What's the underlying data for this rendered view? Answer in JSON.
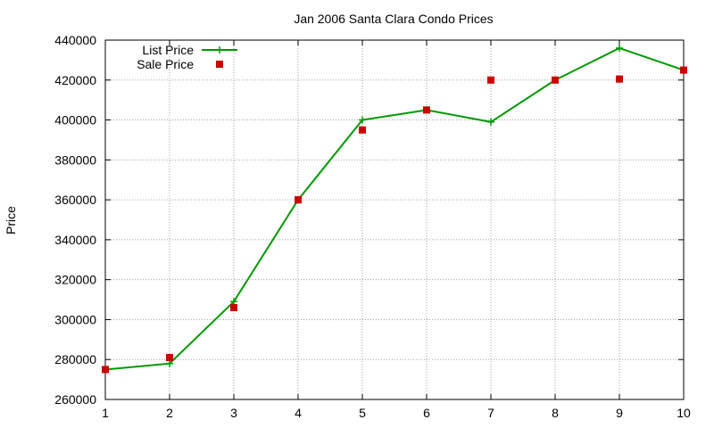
{
  "chart_data": {
    "type": "line",
    "title": "Jan 2006 Santa Clara Condo Prices",
    "xlabel": "",
    "ylabel": "Price",
    "xlim": [
      1,
      10
    ],
    "ylim": [
      260000,
      440000
    ],
    "x_ticks": [
      "1",
      "2",
      "3",
      "4",
      "5",
      "6",
      "7",
      "8",
      "9",
      "10"
    ],
    "y_ticks": [
      "260000",
      "280000",
      "300000",
      "320000",
      "340000",
      "360000",
      "380000",
      "400000",
      "420000",
      "440000"
    ],
    "grid": true,
    "legend_position": "top-left",
    "x": [
      1,
      2,
      3,
      4,
      5,
      6,
      7,
      8,
      9,
      10
    ],
    "series": [
      {
        "name": "List Price",
        "style": "line+cross",
        "color": "#009900",
        "values": [
          275000,
          278000,
          309000,
          360000,
          400000,
          405000,
          399000,
          420000,
          436000,
          425000
        ]
      },
      {
        "name": "Sale Price",
        "style": "square-points",
        "color": "#cc0000",
        "values": [
          275000,
          281000,
          306000,
          360000,
          395000,
          405000,
          420000,
          420000,
          420500,
          425000
        ]
      }
    ]
  }
}
